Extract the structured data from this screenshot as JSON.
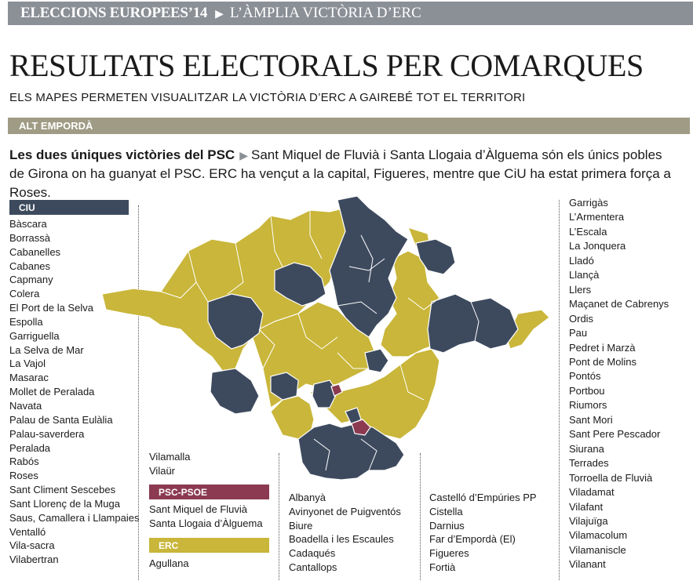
{
  "header": {
    "section": "ELECCIONS EUROPEES’14",
    "subsection": "L’ÀMPLIA VICTÒRIA D’ERC"
  },
  "title": "RESULTATS ELECTORALS PER COMARQUES",
  "subtitle": "ELS MAPES PERMETEN VISUALITZAR LA VICTÒRIA D’ERC A GAIREBÉ TOT EL TERRITORI",
  "region": "ALT EMPORDÀ",
  "lede": {
    "lead": "Les dues úniques victòries del PSC",
    "text": "Sant Miquel de Fluvià i Santa Llogaia d’Àlguema són els únics pobles de Girona on ha guanyat el PSC. ERC ha vençut a la capital, Figueres, mentre que CiU ha estat primera força a Roses."
  },
  "colors": {
    "ciu": "#3d4a5e",
    "erc": "#c9b63a",
    "psc": "#8b3a52"
  },
  "ciu": {
    "label": "CIU",
    "items": [
      "Bàscara",
      "Borrassà",
      "Cabanelles",
      "Cabanes",
      "Capmany",
      "Colera",
      "El Port de la Selva",
      "Espolla",
      "Garriguella",
      "La Selva de Mar",
      "La Vajol",
      "Masarac",
      "Mollet de Peralada",
      "Navata",
      "Palau de Santa Eulàlia",
      "Palau-saverdera",
      "Peralada",
      "Rabós",
      "Roses",
      "Sant Climent Sescebes",
      "Sant Llorenç de la Muga",
      "Saus, Camallera i Llampaies",
      "Ventalló",
      "Vila-sacra",
      "Vilabertran"
    ],
    "items2": [
      "Vilamalla",
      "Vilaür"
    ]
  },
  "psc": {
    "label": "PSC-PSOE",
    "items": [
      "Sant Miquel de Fluvià",
      "Santa Llogaia d’Àlguema"
    ]
  },
  "erc": {
    "label": "ERC",
    "items": [
      "Agullana"
    ],
    "items_col3": [
      "Albanyà",
      "Avinyonet de Puigventós",
      "Biure",
      "Boadella i les Escaules",
      "Cadaqués",
      "Cantallops"
    ],
    "items_col4": [
      "Castelló d’Empúries PP",
      "Cistella",
      "Darnius",
      "Far d’Empordà (El)",
      "Figueres",
      "Fortià"
    ],
    "items_col5": [
      "Garrigàs",
      "L’Armentera",
      "L’Escala",
      "La Jonquera",
      "Lladó",
      "Llançà",
      "Llers",
      "Maçanet de Cabrenys",
      "Ordis",
      "Pau",
      "Pedret i Marzà",
      "Pont de Molins",
      "Pontós",
      "Portbou",
      "Riumors",
      "Sant Mori",
      "Sant Pere Pescador",
      "Siurana",
      "Terrades",
      "Torroella de Fluvià",
      "Viladamat",
      "Vilafant",
      "Vilajuïga",
      "Vilamacolum",
      "Vilamaniscle",
      "Vilanant"
    ]
  }
}
